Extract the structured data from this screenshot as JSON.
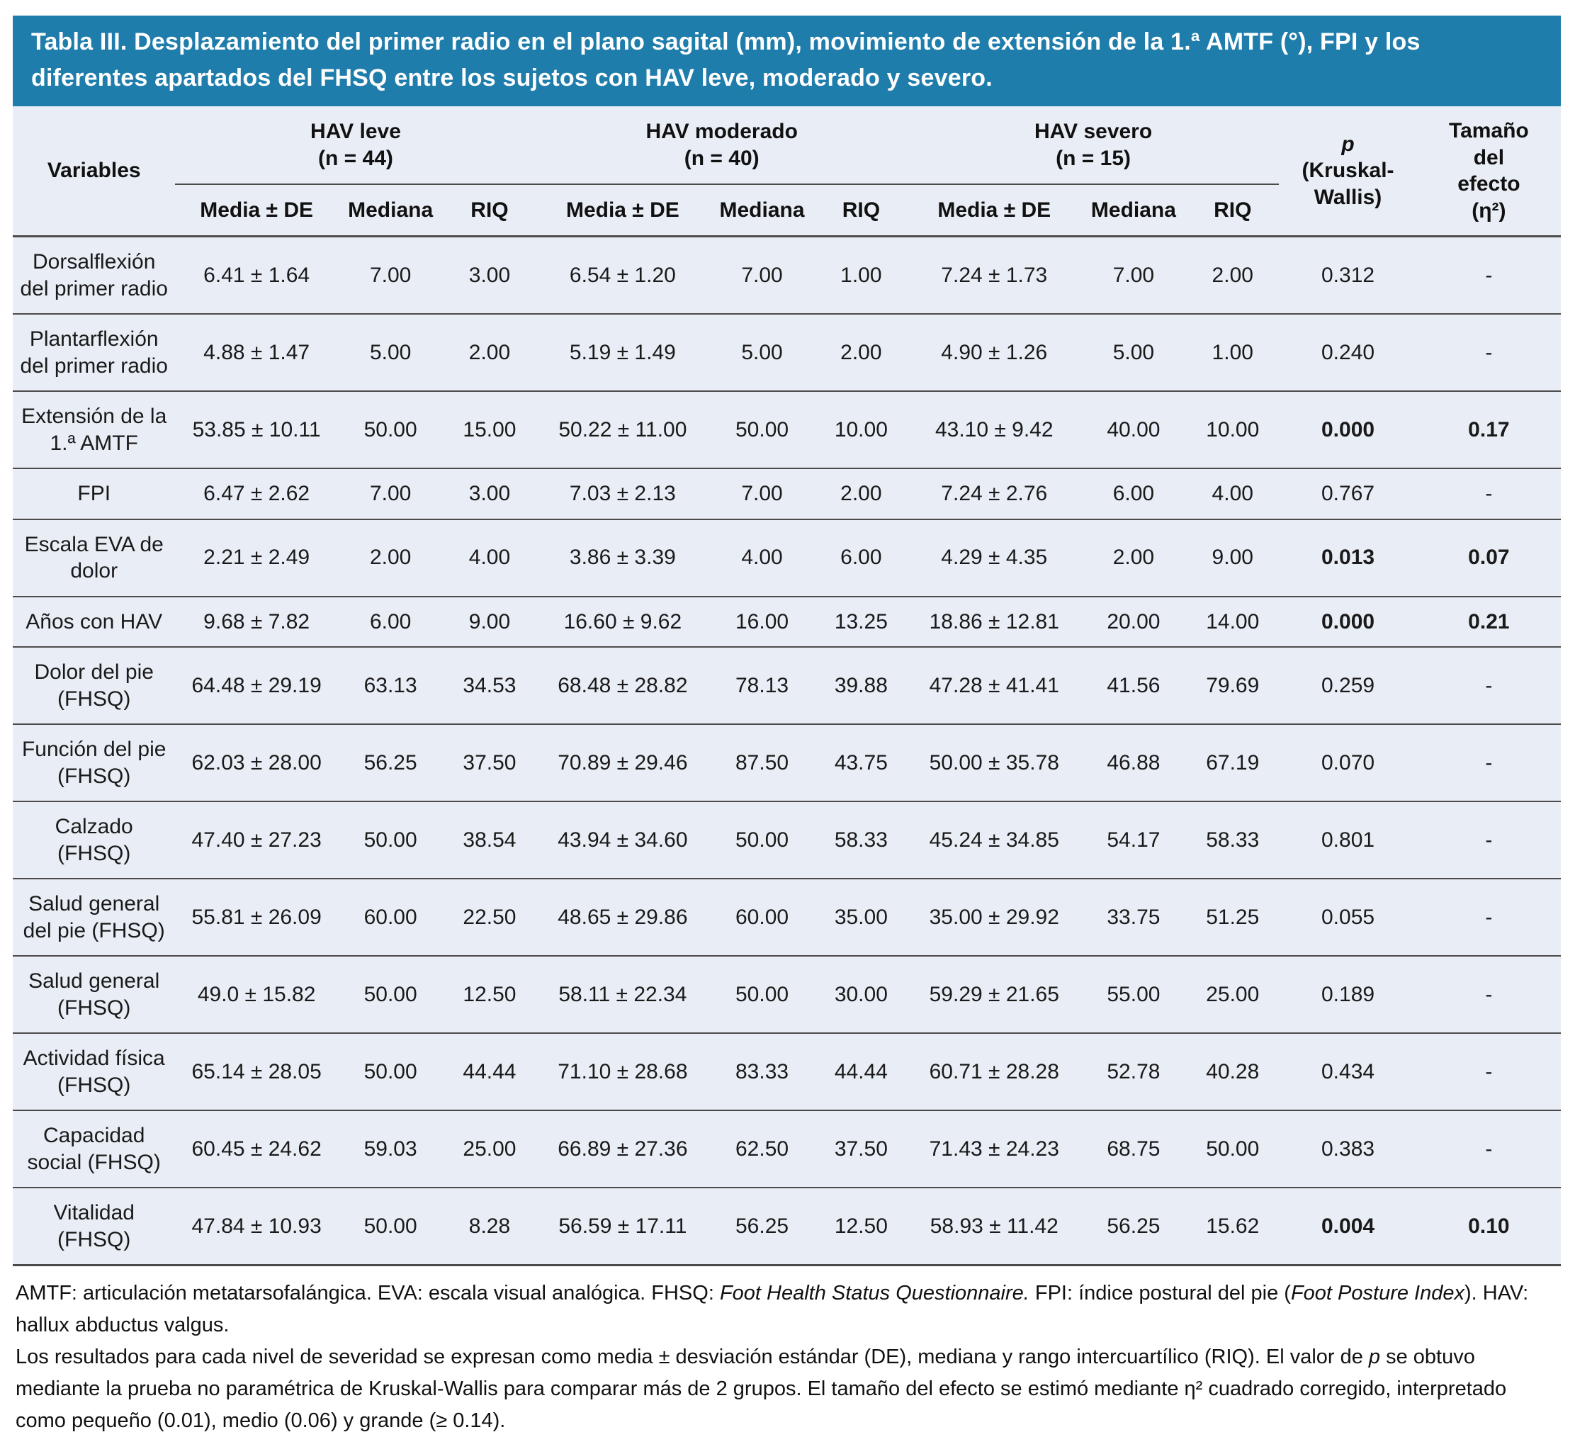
{
  "title": "Tabla III. Desplazamiento del primer radio en el plano sagital (mm), movimiento de extensión de la 1.ª AMTF (°), FPI y los diferentes apartados del FHSQ entre los sujetos con HAV leve, moderado y severo.",
  "colors": {
    "title_bar_background": "#1f7dac",
    "title_text": "#ffffff",
    "table_background": "#e9eef6",
    "rule_color": "#4b4b4b",
    "body_text": "#1a1a1a"
  },
  "header": {
    "variables_label": "Variables",
    "groups": [
      {
        "name": "HAV leve",
        "n": "(n = 44)"
      },
      {
        "name": "HAV moderado",
        "n": "(n = 40)"
      },
      {
        "name": "HAV severo",
        "n": "(n = 15)"
      }
    ],
    "subcols": [
      "Media ± DE",
      "Mediana",
      "RIQ"
    ],
    "p_italic": "p",
    "p_rest": "(Kruskal-Wallis)",
    "effect_label": "Tamaño\ndel\nefecto\n(η²)"
  },
  "rows": [
    {
      "label": "Dorsalflexión del primer radio",
      "values": [
        "6.41 ± 1.64",
        "7.00",
        "3.00",
        "6.54 ± 1.20",
        "7.00",
        "1.00",
        "7.24 ± 1.73",
        "7.00",
        "2.00"
      ],
      "p": "0.312",
      "effect": "-",
      "significant": false
    },
    {
      "label": "Plantarflexión del primer radio",
      "values": [
        "4.88 ± 1.47",
        "5.00",
        "2.00",
        "5.19 ± 1.49",
        "5.00",
        "2.00",
        "4.90 ± 1.26",
        "5.00",
        "1.00"
      ],
      "p": "0.240",
      "effect": "-",
      "significant": false
    },
    {
      "label": "Extensión de la 1.ª AMTF",
      "values": [
        "53.85 ± 10.11",
        "50.00",
        "15.00",
        "50.22 ± 11.00",
        "50.00",
        "10.00",
        "43.10 ± 9.42",
        "40.00",
        "10.00"
      ],
      "p": "0.000",
      "effect": "0.17",
      "significant": true
    },
    {
      "label": "FPI",
      "values": [
        "6.47 ± 2.62",
        "7.00",
        "3.00",
        "7.03 ± 2.13",
        "7.00",
        "2.00",
        "7.24 ± 2.76",
        "6.00",
        "4.00"
      ],
      "p": "0.767",
      "effect": "-",
      "significant": false
    },
    {
      "label": "Escala EVA de dolor",
      "values": [
        "2.21 ± 2.49",
        "2.00",
        "4.00",
        "3.86 ± 3.39",
        "4.00",
        "6.00",
        "4.29 ± 4.35",
        "2.00",
        "9.00"
      ],
      "p": "0.013",
      "effect": "0.07",
      "significant": true
    },
    {
      "label": "Años con HAV",
      "values": [
        "9.68 ± 7.82",
        "6.00",
        "9.00",
        "16.60 ± 9.62",
        "16.00",
        "13.25",
        "18.86 ± 12.81",
        "20.00",
        "14.00"
      ],
      "p": "0.000",
      "effect": "0.21",
      "significant": true
    },
    {
      "label": "Dolor del pie (FHSQ)",
      "values": [
        "64.48 ± 29.19",
        "63.13",
        "34.53",
        "68.48 ± 28.82",
        "78.13",
        "39.88",
        "47.28 ± 41.41",
        "41.56",
        "79.69"
      ],
      "p": "0.259",
      "effect": "-",
      "significant": false
    },
    {
      "label": "Función del pie (FHSQ)",
      "values": [
        "62.03 ± 28.00",
        "56.25",
        "37.50",
        "70.89 ± 29.46",
        "87.50",
        "43.75",
        "50.00 ± 35.78",
        "46.88",
        "67.19"
      ],
      "p": "0.070",
      "effect": "-",
      "significant": false
    },
    {
      "label": "Calzado (FHSQ)",
      "values": [
        "47.40 ± 27.23",
        "50.00",
        "38.54",
        "43.94 ± 34.60",
        "50.00",
        "58.33",
        "45.24 ± 34.85",
        "54.17",
        "58.33"
      ],
      "p": "0.801",
      "effect": "-",
      "significant": false
    },
    {
      "label": "Salud general del pie (FHSQ)",
      "values": [
        "55.81 ± 26.09",
        "60.00",
        "22.50",
        "48.65 ± 29.86",
        "60.00",
        "35.00",
        "35.00 ± 29.92",
        "33.75",
        "51.25"
      ],
      "p": "0.055",
      "effect": "-",
      "significant": false
    },
    {
      "label": "Salud general (FHSQ)",
      "values": [
        "49.0 ± 15.82",
        "50.00",
        "12.50",
        "58.11 ± 22.34",
        "50.00",
        "30.00",
        "59.29 ± 21.65",
        "55.00",
        "25.00"
      ],
      "p": "0.189",
      "effect": "-",
      "significant": false
    },
    {
      "label": "Actividad física (FHSQ)",
      "values": [
        "65.14 ± 28.05",
        "50.00",
        "44.44",
        "71.10 ± 28.68",
        "83.33",
        "44.44",
        "60.71 ± 28.28",
        "52.78",
        "40.28"
      ],
      "p": "0.434",
      "effect": "-",
      "significant": false
    },
    {
      "label": "Capacidad social (FHSQ)",
      "values": [
        "60.45 ± 24.62",
        "59.03",
        "25.00",
        "66.89 ± 27.36",
        "62.50",
        "37.50",
        "71.43 ± 24.23",
        "68.75",
        "50.00"
      ],
      "p": "0.383",
      "effect": "-",
      "significant": false
    },
    {
      "label": "Vitalidad (FHSQ)",
      "values": [
        "47.84 ± 10.93",
        "50.00",
        "8.28",
        "56.59 ± 17.11",
        "56.25",
        "12.50",
        "58.93 ± 11.42",
        "56.25",
        "15.62"
      ],
      "p": "0.004",
      "effect": "0.10",
      "significant": true
    }
  ],
  "footnotes": [
    [
      {
        "text": "AMTF: articulación metatarsofalángica. EVA: escala visual analógica. FHSQ: "
      },
      {
        "text": "Foot Health Status Questionnaire.",
        "italic": true
      },
      {
        "text": " FPI: índice postural del pie ("
      },
      {
        "text": "Foot Posture Index",
        "italic": true
      },
      {
        "text": "). HAV: hallux abductus valgus."
      }
    ],
    [
      {
        "text": "Los resultados para cada nivel de severidad se expresan como media ± desviación estándar (DE), mediana y rango intercuartílico (RIQ). El valor de "
      },
      {
        "text": "p",
        "italic": true
      },
      {
        "text": " se obtuvo mediante la prueba no paramétrica de Kruskal-Wallis para comparar más de 2 grupos. El tamaño del efecto se estimó mediante η² cuadrado corregido, interpretado como pequeño (0.01), medio (0.06) y grande (≥ 0.14)."
      }
    ]
  ]
}
